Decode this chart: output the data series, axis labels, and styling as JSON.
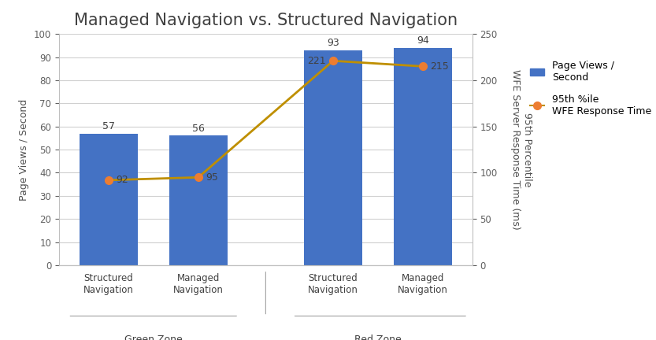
{
  "title": "Managed Navigation vs. Structured Navigation",
  "categories": [
    "Structured\nNavigation",
    "Managed\nNavigation",
    "Structured\nNavigation",
    "Managed\nNavigation"
  ],
  "zone_labels": [
    "Green Zone",
    "Red Zone"
  ],
  "bar_values": [
    57,
    56,
    93,
    94
  ],
  "line_values": [
    92,
    95,
    221,
    215
  ],
  "bar_color": "#4472C4",
  "line_color": "#BF8F00",
  "line_marker": "o",
  "line_marker_color": "#ED7D31",
  "ylabel_left": "Page Views / Second",
  "ylabel_right": "95th Percentile\nWFE Server Response Time (ms)",
  "ylim_left": [
    0,
    100
  ],
  "ylim_right": [
    0,
    250
  ],
  "yticks_left": [
    0,
    10,
    20,
    30,
    40,
    50,
    60,
    70,
    80,
    90,
    100
  ],
  "yticks_right": [
    0,
    50,
    100,
    150,
    200,
    250
  ],
  "legend_bar_label": "Page Views /\nSecond",
  "legend_line_label": "95th %ile\nWFE Response Time",
  "background_color": "#FFFFFF",
  "title_fontsize": 15,
  "label_fontsize": 9,
  "tick_fontsize": 8.5,
  "annotation_fontsize": 9
}
